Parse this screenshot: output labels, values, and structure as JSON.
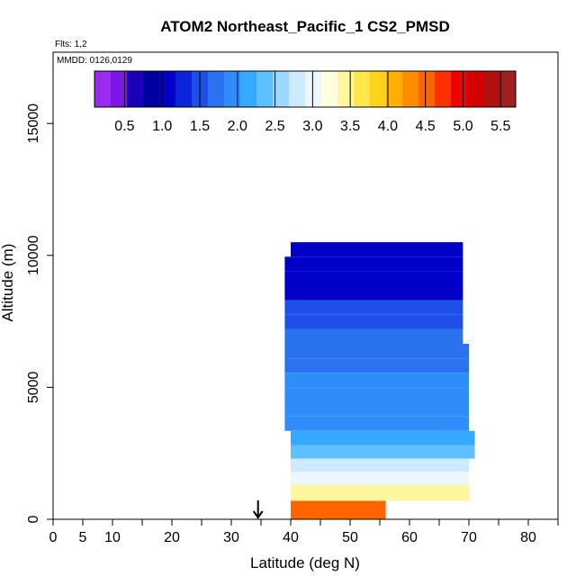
{
  "chart_data": {
    "type": "heatmap",
    "title": "ATOM2 Northeast_Pacific_1 CS2_PMSD",
    "flights_label": "Flts: 1,2",
    "mmdd_label": "MMDD: 0126,0129",
    "xlabel": "Latitude (deg N)",
    "ylabel": "Altitude (m)",
    "xlim": [
      0,
      85
    ],
    "ylim": [
      0,
      17700
    ],
    "x_tick_labels": [
      "0",
      "5",
      "10",
      "20",
      "30",
      "40",
      "50",
      "60",
      "70",
      "80"
    ],
    "y_tick_labels": [
      "0",
      "5000",
      "10000",
      "15000"
    ],
    "grid": false,
    "colorbar": {
      "range": [
        0.1,
        5.7
      ],
      "tick_labels": [
        "0.5",
        "1.0",
        "1.5",
        "2.0",
        "2.5",
        "3.0",
        "3.5",
        "4.0",
        "4.5",
        "5.0",
        "5.5"
      ],
      "colors": [
        "#9a2cf0",
        "#7b18e6",
        "#1a00b8",
        "#00009e",
        "#0000c8",
        "#0a24d8",
        "#1e4fe8",
        "#2a72f0",
        "#2f8dfa",
        "#35a8ff",
        "#5ec0ff",
        "#9fd8ff",
        "#cdeaff",
        "#eef6ff",
        "#fffee0",
        "#fff6a0",
        "#ffe64a",
        "#ffd21a",
        "#ffb000",
        "#ff8c00",
        "#ff6400",
        "#ff3000",
        "#f00000",
        "#d20000",
        "#b01010",
        "#a02020"
      ]
    },
    "arrow_marker": {
      "latitude": 34.5
    },
    "cells": [
      {
        "lat": [
          40,
          69
        ],
        "alt": [
          9950,
          10500
        ],
        "value": 1.0
      },
      {
        "lat": [
          39,
          69
        ],
        "alt": [
          9400,
          9950
        ],
        "value": 1.0
      },
      {
        "lat": [
          39,
          69
        ],
        "alt": [
          8850,
          9400
        ],
        "value": 1.0
      },
      {
        "lat": [
          39,
          69
        ],
        "alt": [
          8300,
          8850
        ],
        "value": 1.1
      },
      {
        "lat": [
          39,
          69
        ],
        "alt": [
          7750,
          8300
        ],
        "value": 1.4
      },
      {
        "lat": [
          39,
          69
        ],
        "alt": [
          7200,
          7750
        ],
        "value": 1.6
      },
      {
        "lat": [
          39,
          69
        ],
        "alt": [
          6650,
          7200
        ],
        "value": 1.7
      },
      {
        "lat": [
          39,
          70
        ],
        "alt": [
          6100,
          6650
        ],
        "value": 1.8
      },
      {
        "lat": [
          39,
          70
        ],
        "alt": [
          5550,
          6100
        ],
        "value": 1.8
      },
      {
        "lat": [
          39,
          70
        ],
        "alt": [
          5000,
          5550
        ],
        "value": 1.9
      },
      {
        "lat": [
          39,
          70
        ],
        "alt": [
          4450,
          5000
        ],
        "value": 1.9
      },
      {
        "lat": [
          39,
          70
        ],
        "alt": [
          3900,
          4450
        ],
        "value": 2.0
      },
      {
        "lat": [
          39,
          70
        ],
        "alt": [
          3350,
          3900
        ],
        "value": 2.0
      },
      {
        "lat": [
          40,
          71
        ],
        "alt": [
          2800,
          3350
        ],
        "value": 2.1
      },
      {
        "lat": [
          40,
          71
        ],
        "alt": [
          2300,
          2800
        ],
        "value": 2.4
      },
      {
        "lat": [
          40,
          70
        ],
        "alt": [
          1800,
          2300
        ],
        "value": 2.7
      },
      {
        "lat": [
          40,
          70
        ],
        "alt": [
          1300,
          1800
        ],
        "value": 3.0
      },
      {
        "lat": [
          40,
          70
        ],
        "alt": [
          700,
          1300
        ],
        "value": 3.4
      },
      {
        "lat": [
          40,
          56
        ],
        "alt": [
          0,
          700
        ],
        "value": 4.6
      }
    ]
  }
}
